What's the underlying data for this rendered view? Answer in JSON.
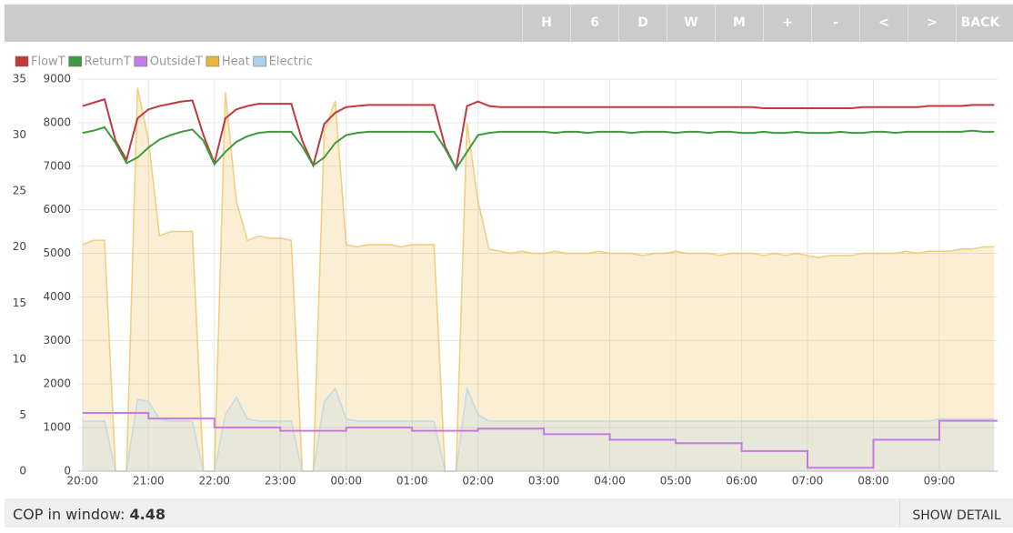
{
  "toolbar": {
    "buttons": [
      "H",
      "6",
      "D",
      "W",
      "M",
      "+",
      "-",
      "<",
      ">",
      "BACK"
    ]
  },
  "chart_data": {
    "type": "line",
    "x": [
      0,
      10,
      20,
      30,
      40,
      50,
      60,
      70,
      80,
      90,
      100,
      110,
      120,
      130,
      140,
      150,
      160,
      170,
      180,
      190,
      200,
      210,
      220,
      230,
      240,
      250,
      260,
      270,
      280,
      290,
      300,
      310,
      320,
      330,
      340,
      350,
      360,
      370,
      380,
      390,
      400,
      410,
      420,
      430,
      440,
      450,
      460,
      470,
      480,
      490,
      500,
      510,
      520,
      530,
      540,
      550,
      560,
      570,
      580,
      590,
      600,
      610,
      620,
      630,
      640,
      650,
      660,
      670,
      680,
      690,
      700,
      710,
      720,
      730,
      740,
      750,
      760,
      770,
      780,
      790,
      800,
      810,
      820,
      830
    ],
    "xlim": [
      -4,
      833
    ],
    "xticks": [
      {
        "value": 0,
        "label": "20:00"
      },
      {
        "value": 60,
        "label": "21:00"
      },
      {
        "value": 120,
        "label": "22:00"
      },
      {
        "value": 180,
        "label": "23:00"
      },
      {
        "value": 240,
        "label": "00:00"
      },
      {
        "value": 300,
        "label": "01:00"
      },
      {
        "value": 360,
        "label": "02:00"
      },
      {
        "value": 420,
        "label": "03:00"
      },
      {
        "value": 480,
        "label": "04:00"
      },
      {
        "value": 540,
        "label": "05:00"
      },
      {
        "value": 600,
        "label": "06:00"
      },
      {
        "value": 660,
        "label": "07:00"
      },
      {
        "value": 720,
        "label": "08:00"
      },
      {
        "value": 780,
        "label": "09:00"
      }
    ],
    "ylim": [
      0,
      9000
    ],
    "yticks": [
      0,
      1000,
      2000,
      3000,
      4000,
      5000,
      6000,
      7000,
      8000,
      9000
    ],
    "y2lim": [
      0,
      35
    ],
    "y2ticks": [
      0,
      5,
      10,
      15,
      20,
      25,
      30,
      35
    ],
    "grid": true,
    "legend": "top-left",
    "series": [
      {
        "name": "FlowT",
        "color": "#c0393b",
        "axis": "y2",
        "values": [
          32.6,
          32.9,
          33.2,
          29.5,
          27.8,
          31.5,
          32.3,
          32.6,
          32.8,
          33.0,
          33.1,
          30.0,
          27.5,
          31.5,
          32.3,
          32.6,
          32.8,
          32.8,
          32.8,
          32.8,
          29.5,
          27.3,
          31.0,
          32.0,
          32.5,
          32.6,
          32.7,
          32.7,
          32.7,
          32.7,
          32.7,
          32.7,
          32.7,
          29.0,
          27.0,
          32.6,
          33.0,
          32.6,
          32.5,
          32.5,
          32.5,
          32.5,
          32.5,
          32.5,
          32.5,
          32.5,
          32.5,
          32.5,
          32.5,
          32.5,
          32.5,
          32.5,
          32.5,
          32.5,
          32.5,
          32.5,
          32.5,
          32.5,
          32.5,
          32.5,
          32.5,
          32.5,
          32.4,
          32.4,
          32.4,
          32.4,
          32.4,
          32.4,
          32.4,
          32.4,
          32.4,
          32.5,
          32.5,
          32.5,
          32.5,
          32.5,
          32.5,
          32.6,
          32.6,
          32.6,
          32.6,
          32.7,
          32.7,
          32.7
        ]
      },
      {
        "name": "ReturnT",
        "color": "#3e9a3e",
        "axis": "y2",
        "values": [
          30.2,
          30.4,
          30.7,
          29.3,
          27.5,
          28.0,
          28.9,
          29.6,
          30.0,
          30.3,
          30.5,
          29.5,
          27.4,
          28.5,
          29.4,
          29.9,
          30.2,
          30.3,
          30.3,
          30.3,
          29.0,
          27.3,
          28.0,
          29.3,
          30.0,
          30.2,
          30.3,
          30.3,
          30.3,
          30.3,
          30.3,
          30.3,
          30.3,
          28.8,
          27.0,
          28.5,
          30.0,
          30.2,
          30.3,
          30.3,
          30.3,
          30.3,
          30.3,
          30.2,
          30.3,
          30.3,
          30.2,
          30.3,
          30.3,
          30.3,
          30.2,
          30.3,
          30.3,
          30.3,
          30.2,
          30.3,
          30.3,
          30.2,
          30.3,
          30.3,
          30.2,
          30.2,
          30.3,
          30.2,
          30.2,
          30.3,
          30.2,
          30.2,
          30.2,
          30.3,
          30.2,
          30.2,
          30.3,
          30.3,
          30.2,
          30.3,
          30.3,
          30.3,
          30.3,
          30.3,
          30.3,
          30.4,
          30.3,
          30.3
        ]
      },
      {
        "name": "OutsideT",
        "color": "#c57be6",
        "axis": "y2",
        "step": true,
        "values": [
          5.2,
          5.2,
          5.2,
          5.2,
          5.2,
          5.2,
          4.7,
          4.7,
          4.7,
          4.7,
          4.7,
          4.7,
          3.9,
          3.9,
          3.9,
          3.9,
          3.9,
          3.9,
          3.6,
          3.6,
          3.6,
          3.6,
          3.6,
          3.6,
          3.9,
          3.9,
          3.9,
          3.9,
          3.9,
          3.9,
          3.6,
          3.6,
          3.6,
          3.6,
          3.6,
          3.6,
          3.8,
          3.8,
          3.8,
          3.8,
          3.8,
          3.8,
          3.3,
          3.3,
          3.3,
          3.3,
          3.3,
          3.3,
          2.8,
          2.8,
          2.8,
          2.8,
          2.8,
          2.8,
          2.5,
          2.5,
          2.5,
          2.5,
          2.5,
          2.5,
          1.8,
          1.8,
          1.8,
          1.8,
          1.8,
          1.8,
          0.3,
          0.3,
          0.3,
          0.3,
          0.3,
          0.3,
          2.8,
          2.8,
          2.8,
          2.8,
          2.8,
          2.8,
          4.5,
          4.5,
          4.5,
          4.5,
          4.5,
          4.5
        ]
      },
      {
        "name": "Heat",
        "color": "#e8b63e",
        "fill": true,
        "values": [
          5200,
          5300,
          5300,
          0,
          0,
          8800,
          7600,
          5400,
          5500,
          5500,
          5500,
          0,
          0,
          8700,
          6200,
          5300,
          5400,
          5350,
          5350,
          5300,
          0,
          0,
          7800,
          8500,
          5200,
          5150,
          5200,
          5200,
          5200,
          5150,
          5200,
          5200,
          5200,
          0,
          0,
          8000,
          6200,
          5100,
          5050,
          5000,
          5050,
          5000,
          5000,
          5050,
          5000,
          5000,
          5000,
          5050,
          5000,
          5000,
          5000,
          4950,
          5000,
          5000,
          5050,
          5000,
          5000,
          5000,
          4950,
          5000,
          5000,
          5000,
          4950,
          5000,
          4950,
          5000,
          4950,
          4900,
          4950,
          4950,
          4950,
          5000,
          5000,
          5000,
          5000,
          5050,
          5000,
          5050,
          5050,
          5050,
          5100,
          5100,
          5150,
          5150
        ]
      },
      {
        "name": "Electric",
        "color": "#a9d2ef",
        "fill": true,
        "values": [
          1150,
          1150,
          1150,
          0,
          0,
          1650,
          1600,
          1200,
          1150,
          1150,
          1150,
          0,
          0,
          1300,
          1700,
          1200,
          1150,
          1150,
          1150,
          1150,
          0,
          0,
          1600,
          1900,
          1200,
          1150,
          1150,
          1150,
          1150,
          1150,
          1150,
          1150,
          1150,
          0,
          0,
          1900,
          1300,
          1150,
          1150,
          1150,
          1150,
          1150,
          1150,
          1150,
          1150,
          1150,
          1150,
          1150,
          1150,
          1150,
          1150,
          1150,
          1150,
          1150,
          1150,
          1150,
          1150,
          1150,
          1150,
          1150,
          1150,
          1150,
          1150,
          1150,
          1150,
          1150,
          1150,
          1150,
          1150,
          1150,
          1150,
          1150,
          1150,
          1150,
          1150,
          1150,
          1150,
          1150,
          1200,
          1200,
          1200,
          1200,
          1200,
          1200
        ]
      }
    ]
  },
  "footer": {
    "cop_label": "COP in window:",
    "cop_value": 4.48,
    "detail_button": "SHOW DETAIL"
  }
}
